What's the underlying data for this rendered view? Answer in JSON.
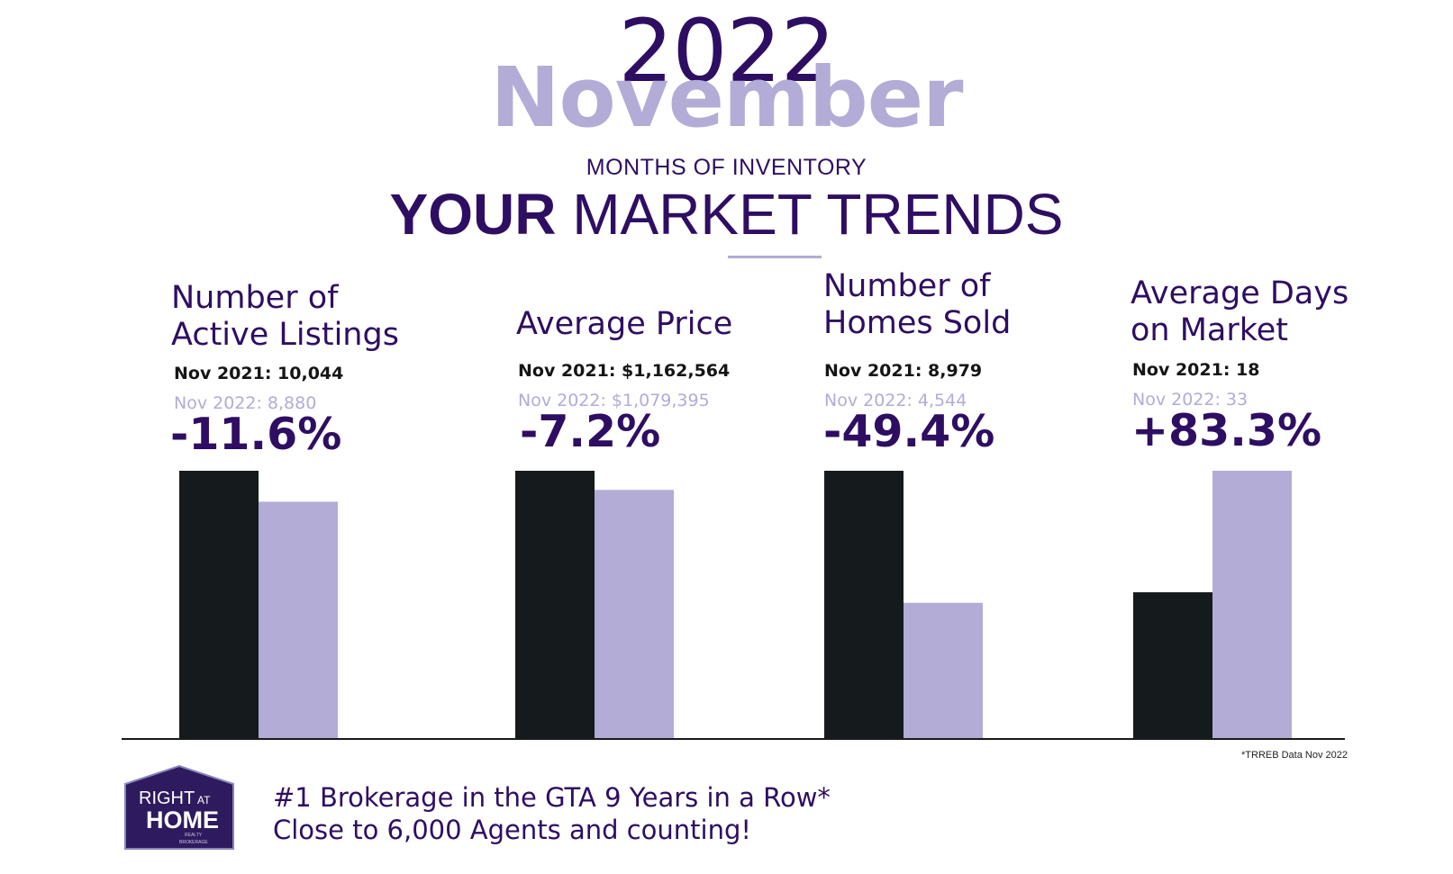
{
  "header": {
    "year": "2022",
    "month": "November",
    "subtitle": "MONTHS OF INVENTORY",
    "headline_bold": "YOUR",
    "headline_rest": "MARKET TRENDS"
  },
  "colors": {
    "dark": "#2e0e62",
    "lavender": "#b2acd6",
    "bar_prev": "#151a1c",
    "bar_curr": "#b2acd6"
  },
  "panels": [
    {
      "title_line1": "Number of",
      "title_line2": "Active Listings",
      "prev_label": "Nov 2021: 10,044",
      "curr_label": "Nov  2022: 8,880",
      "change": "-11.6%"
    },
    {
      "title_line1": "Average Price",
      "title_line2": "",
      "prev_label": "Nov 2021: $1,162,564",
      "curr_label": "Nov  2022: $1,079,395",
      "change": "-7.2%"
    },
    {
      "title_line1": "Number of",
      "title_line2": "Homes Sold",
      "prev_label": "Nov 2021: 8,979",
      "curr_label": "Nov  2022: 4,544",
      "change": "-49.4%"
    },
    {
      "title_line1": "Average Days",
      "title_line2": "on Market",
      "prev_label": "Nov 2021: 18",
      "curr_label": "Nov  2022: 33",
      "change": "+83.3%"
    }
  ],
  "chart_data": {
    "type": "bar",
    "categories": [
      "Number of Active Listings",
      "Average Price",
      "Number of Homes Sold",
      "Average Days on Market"
    ],
    "series": [
      {
        "values": [
          10044,
          1162564,
          8979,
          18
        ]
      },
      {
        "values": [
          8880,
          1079395,
          4544,
          33
        ]
      }
    ],
    "changes": [
      "-11.6%",
      "-7.2%",
      "-49.4%",
      "+83.3%"
    ],
    "scale": "independent per category",
    "grid": false,
    "legend": "none"
  },
  "footnote": "*TRREB Data Nov 2022",
  "footer": {
    "line1": "#1 Brokerage in the GTA 9 Years in a Row*",
    "line2": "Close to 6,000 Agents and counting!"
  },
  "logo": {
    "word1": "RIGHT",
    "word2": "AT",
    "word3": "HOME",
    "word4": "REALTY",
    "word5": "BROKERAGE"
  }
}
